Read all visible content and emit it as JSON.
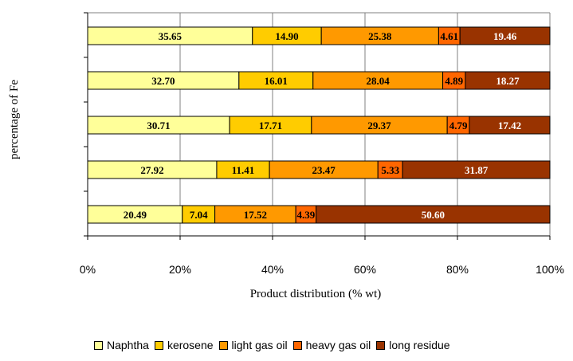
{
  "chart_data": {
    "type": "bar",
    "orientation": "horizontal",
    "stacked": true,
    "percent_scale": true,
    "xlabel": "Product distribution (% wt)",
    "ylabel": "percentage of Fe",
    "xlim": [
      0,
      100
    ],
    "x_ticks": [
      "0%",
      "20%",
      "40%",
      "60%",
      "80%",
      "100%"
    ],
    "grid": true,
    "legend_position": "bottom",
    "series": [
      {
        "name": "Naphtha",
        "color": "#ffff99",
        "label_color": "#000000",
        "values": [
          35.65,
          32.7,
          30.71,
          27.92,
          20.49
        ]
      },
      {
        "name": "kerosene",
        "color": "#ffcc00",
        "label_color": "#000000",
        "values": [
          14.9,
          16.01,
          17.71,
          11.41,
          7.04
        ]
      },
      {
        "name": "light gas oil",
        "color": "#ff9900",
        "label_color": "#000000",
        "values": [
          25.38,
          28.04,
          29.37,
          23.47,
          17.52
        ]
      },
      {
        "name": "heavy gas oil",
        "color": "#ff6600",
        "label_color": "#000000",
        "values": [
          4.61,
          4.89,
          4.79,
          5.33,
          4.39
        ]
      },
      {
        "name": "long residue",
        "color": "#993300",
        "label_color": "#ffffff",
        "values": [
          19.46,
          18.27,
          17.42,
          31.87,
          50.6
        ]
      }
    ],
    "value_labels": [
      [
        "35.65",
        "32.70",
        "30.71",
        "27.92",
        "20.49"
      ],
      [
        "14.90",
        "16.01",
        "17.71",
        "11.41",
        "7.04"
      ],
      [
        "25.38",
        "28.04",
        "29.37",
        "23.47",
        "17.52"
      ],
      [
        "4.61",
        "4.89",
        "4.79",
        "5.33",
        "4.39"
      ],
      [
        "19.46",
        "18.27",
        "17.42",
        "31.87",
        "50.60"
      ]
    ]
  }
}
